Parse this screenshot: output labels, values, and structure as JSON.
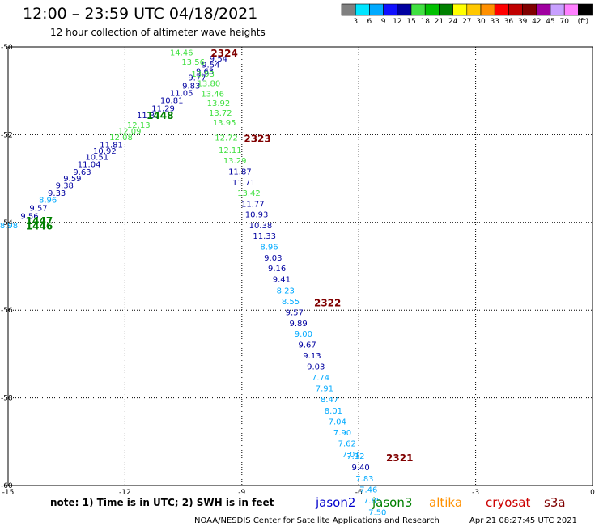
{
  "header": {
    "title": "12:00 – 23:59 UTC 04/18/2021",
    "subtitle": "12 hour collection of altimeter wave heights"
  },
  "colorbar": {
    "labels": [
      "3",
      "6",
      "9",
      "12",
      "15",
      "18",
      "21",
      "24",
      "27",
      "30",
      "33",
      "36",
      "39",
      "42",
      "45",
      "70"
    ],
    "unit": "(ft)",
    "colors": [
      "#808080",
      "#00e5ff",
      "#00aaff",
      "#1010ff",
      "#0000a0",
      "#40e040",
      "#00c000",
      "#008000",
      "#ffff00",
      "#ffc800",
      "#ff9000",
      "#ff0000",
      "#c00000",
      "#800000",
      "#a000a0",
      "#c8a0ff",
      "#ff80ff",
      "#000000"
    ]
  },
  "footer": {
    "note": "note:  1) Time is in UTC; 2) SWH is in feet",
    "satellites": [
      {
        "name": "jason2",
        "color": "#0000cc"
      },
      {
        "name": "jason3",
        "color": "#008000"
      },
      {
        "name": "altika",
        "color": "#ff9000"
      },
      {
        "name": "cryosat",
        "color": "#cc0000"
      },
      {
        "name": "s3a",
        "color": "#800000"
      }
    ],
    "credit": "NOAA/NESDIS Center for Satellite Applications and Research",
    "timestamp": "Apr 21 08:27:45 UTC 2021"
  },
  "chart_data": {
    "type": "scatter",
    "title": "12:00 – 23:59 UTC 04/18/2021",
    "subtitle": "12 hour collection of altimeter wave heights",
    "xlim": [
      -15,
      0
    ],
    "ylim": [
      -60,
      -50
    ],
    "x_ticks": [
      "-15",
      "-12",
      "-9",
      "-6",
      "-3",
      "0"
    ],
    "y_ticks": [
      "-50",
      "-52",
      "-54",
      "-56",
      "-58",
      "-60"
    ],
    "grid": true,
    "observations": [
      {
        "x": -14.98,
        "y": -54.06,
        "label": "8.98",
        "color": "#00aaff"
      },
      {
        "x": -14.45,
        "y": -53.85,
        "label": "9.56",
        "color": "#0000a0"
      },
      {
        "x": -14.22,
        "y": -53.66,
        "label": "9.57",
        "color": "#0000a0"
      },
      {
        "x": -13.98,
        "y": -53.48,
        "label": "8.96",
        "color": "#00aaff"
      },
      {
        "x": -13.75,
        "y": -53.32,
        "label": "9.33",
        "color": "#0000a0"
      },
      {
        "x": -13.55,
        "y": -53.15,
        "label": "9.38",
        "color": "#0000a0"
      },
      {
        "x": -13.35,
        "y": -52.99,
        "label": "9.59",
        "color": "#0000a0"
      },
      {
        "x": -13.1,
        "y": -52.84,
        "label": "9.63",
        "color": "#0000a0"
      },
      {
        "x": -12.92,
        "y": -52.67,
        "label": "11.04",
        "color": "#0000a0"
      },
      {
        "x": -12.72,
        "y": -52.5,
        "label": "10.51",
        "color": "#0000a0"
      },
      {
        "x": -12.52,
        "y": -52.36,
        "label": "10.92",
        "color": "#0000a0"
      },
      {
        "x": -12.35,
        "y": -52.22,
        "label": "11.81",
        "color": "#0000a0"
      },
      {
        "x": -12.1,
        "y": -52.05,
        "label": "12.08",
        "color": "#40e040"
      },
      {
        "x": -11.88,
        "y": -51.91,
        "label": "12.09",
        "color": "#40e040"
      },
      {
        "x": -11.65,
        "y": -51.77,
        "label": "12.13",
        "color": "#40e040"
      },
      {
        "x": -11.4,
        "y": -51.55,
        "label": "11.31",
        "color": "#0000a0"
      },
      {
        "x": -11.02,
        "y": -51.39,
        "label": "11.29",
        "color": "#0000a0"
      },
      {
        "x": -10.8,
        "y": -51.21,
        "label": "10.81",
        "color": "#0000a0"
      },
      {
        "x": -10.55,
        "y": -51.04,
        "label": "11.05",
        "color": "#0000a0"
      },
      {
        "x": -10.3,
        "y": -50.88,
        "label": "9.83",
        "color": "#0000a0"
      },
      {
        "x": -10.15,
        "y": -50.69,
        "label": "9.77",
        "color": "#0000a0"
      },
      {
        "x": -9.95,
        "y": -50.54,
        "label": "9.63",
        "color": "#0000a0"
      },
      {
        "x": -9.8,
        "y": -50.4,
        "label": "9.54",
        "color": "#0000a0"
      },
      {
        "x": -9.6,
        "y": -50.26,
        "label": "9.54",
        "color": "#0000a0"
      },
      {
        "x": -10.55,
        "y": -50.12,
        "label": "14.46",
        "color": "#40e040"
      },
      {
        "x": -10.25,
        "y": -50.33,
        "label": "13.56",
        "color": "#40e040"
      },
      {
        "x": -10.0,
        "y": -50.61,
        "label": "13.93",
        "color": "#40e040"
      },
      {
        "x": -9.85,
        "y": -50.82,
        "label": "13.80",
        "color": "#40e040"
      },
      {
        "x": -9.75,
        "y": -51.06,
        "label": "13.46",
        "color": "#40e040"
      },
      {
        "x": -9.6,
        "y": -51.27,
        "label": "13.92",
        "color": "#40e040"
      },
      {
        "x": -9.55,
        "y": -51.49,
        "label": "13.72",
        "color": "#40e040"
      },
      {
        "x": -9.45,
        "y": -51.72,
        "label": "13.95",
        "color": "#40e040"
      },
      {
        "x": -9.4,
        "y": -52.06,
        "label": "12.72",
        "color": "#40e040"
      },
      {
        "x": -9.3,
        "y": -52.34,
        "label": "12.11",
        "color": "#40e040"
      },
      {
        "x": -9.18,
        "y": -52.58,
        "label": "13.29",
        "color": "#40e040"
      },
      {
        "x": -9.05,
        "y": -52.83,
        "label": "11.87",
        "color": "#0000a0"
      },
      {
        "x": -8.95,
        "y": -53.08,
        "label": "11.71",
        "color": "#0000a0"
      },
      {
        "x": -8.82,
        "y": -53.32,
        "label": "13.42",
        "color": "#40e040"
      },
      {
        "x": -8.72,
        "y": -53.57,
        "label": "11.77",
        "color": "#0000a0"
      },
      {
        "x": -8.62,
        "y": -53.81,
        "label": "10.93",
        "color": "#0000a0"
      },
      {
        "x": -8.52,
        "y": -54.06,
        "label": "10.38",
        "color": "#0000a0"
      },
      {
        "x": -8.42,
        "y": -54.3,
        "label": "11.33",
        "color": "#0000a0"
      },
      {
        "x": -8.3,
        "y": -54.55,
        "label": "8.96",
        "color": "#00aaff"
      },
      {
        "x": -8.2,
        "y": -54.8,
        "label": "9.03",
        "color": "#0000a0"
      },
      {
        "x": -8.1,
        "y": -55.04,
        "label": "9.16",
        "color": "#0000a0"
      },
      {
        "x": -7.98,
        "y": -55.29,
        "label": "9.41",
        "color": "#0000a0"
      },
      {
        "x": -7.88,
        "y": -55.54,
        "label": "8.23",
        "color": "#00aaff"
      },
      {
        "x": -7.75,
        "y": -55.79,
        "label": "8.55",
        "color": "#00aaff"
      },
      {
        "x": -7.65,
        "y": -56.04,
        "label": "9.57",
        "color": "#0000a0"
      },
      {
        "x": -7.55,
        "y": -56.29,
        "label": "9.89",
        "color": "#0000a0"
      },
      {
        "x": -7.42,
        "y": -56.53,
        "label": "9.00",
        "color": "#00aaff"
      },
      {
        "x": -7.32,
        "y": -56.78,
        "label": "9.67",
        "color": "#0000a0"
      },
      {
        "x": -7.2,
        "y": -57.03,
        "label": "9.13",
        "color": "#0000a0"
      },
      {
        "x": -7.1,
        "y": -57.28,
        "label": "9.03",
        "color": "#0000a0"
      },
      {
        "x": -6.98,
        "y": -57.53,
        "label": "7.74",
        "color": "#00aaff"
      },
      {
        "x": -6.88,
        "y": -57.78,
        "label": "7.91",
        "color": "#00aaff"
      },
      {
        "x": -6.75,
        "y": -58.03,
        "label": "8.47",
        "color": "#00aaff"
      },
      {
        "x": -6.65,
        "y": -58.28,
        "label": "8.01",
        "color": "#00aaff"
      },
      {
        "x": -6.55,
        "y": -58.53,
        "label": "7.04",
        "color": "#00aaff"
      },
      {
        "x": -6.42,
        "y": -58.78,
        "label": "7.90",
        "color": "#00aaff"
      },
      {
        "x": -6.3,
        "y": -59.03,
        "label": "7.62",
        "color": "#00aaff"
      },
      {
        "x": -6.2,
        "y": -59.28,
        "label": "7.01",
        "color": "#00aaff"
      },
      {
        "x": -6.08,
        "y": -59.32,
        "label": "7.12",
        "color": "#00aaff"
      },
      {
        "x": -5.95,
        "y": -59.58,
        "label": "9.40",
        "color": "#0000a0"
      },
      {
        "x": -5.85,
        "y": -59.83,
        "label": "7.83",
        "color": "#00aaff"
      },
      {
        "x": -5.75,
        "y": -60.08,
        "label": "7.46",
        "color": "#00aaff"
      },
      {
        "x": -5.65,
        "y": -60.33,
        "label": "7.85",
        "color": "#00aaff"
      },
      {
        "x": -5.52,
        "y": -60.6,
        "label": "7.50",
        "color": "#00aaff"
      }
    ],
    "track_labels": [
      {
        "x": -9.45,
        "y": -50.13,
        "label": "2324",
        "color": "#800000"
      },
      {
        "x": -8.6,
        "y": -52.08,
        "label": "2323",
        "color": "#800000"
      },
      {
        "x": -11.1,
        "y": -51.55,
        "label": "1448",
        "color": "#008000"
      },
      {
        "x": -14.2,
        "y": -53.95,
        "label": "1447",
        "color": "#008000"
      },
      {
        "x": -14.2,
        "y": -54.07,
        "label": "1446",
        "color": "#008000"
      },
      {
        "x": -6.8,
        "y": -55.82,
        "label": "2322",
        "color": "#800000"
      },
      {
        "x": -4.95,
        "y": -59.35,
        "label": "2321",
        "color": "#800000"
      }
    ]
  }
}
